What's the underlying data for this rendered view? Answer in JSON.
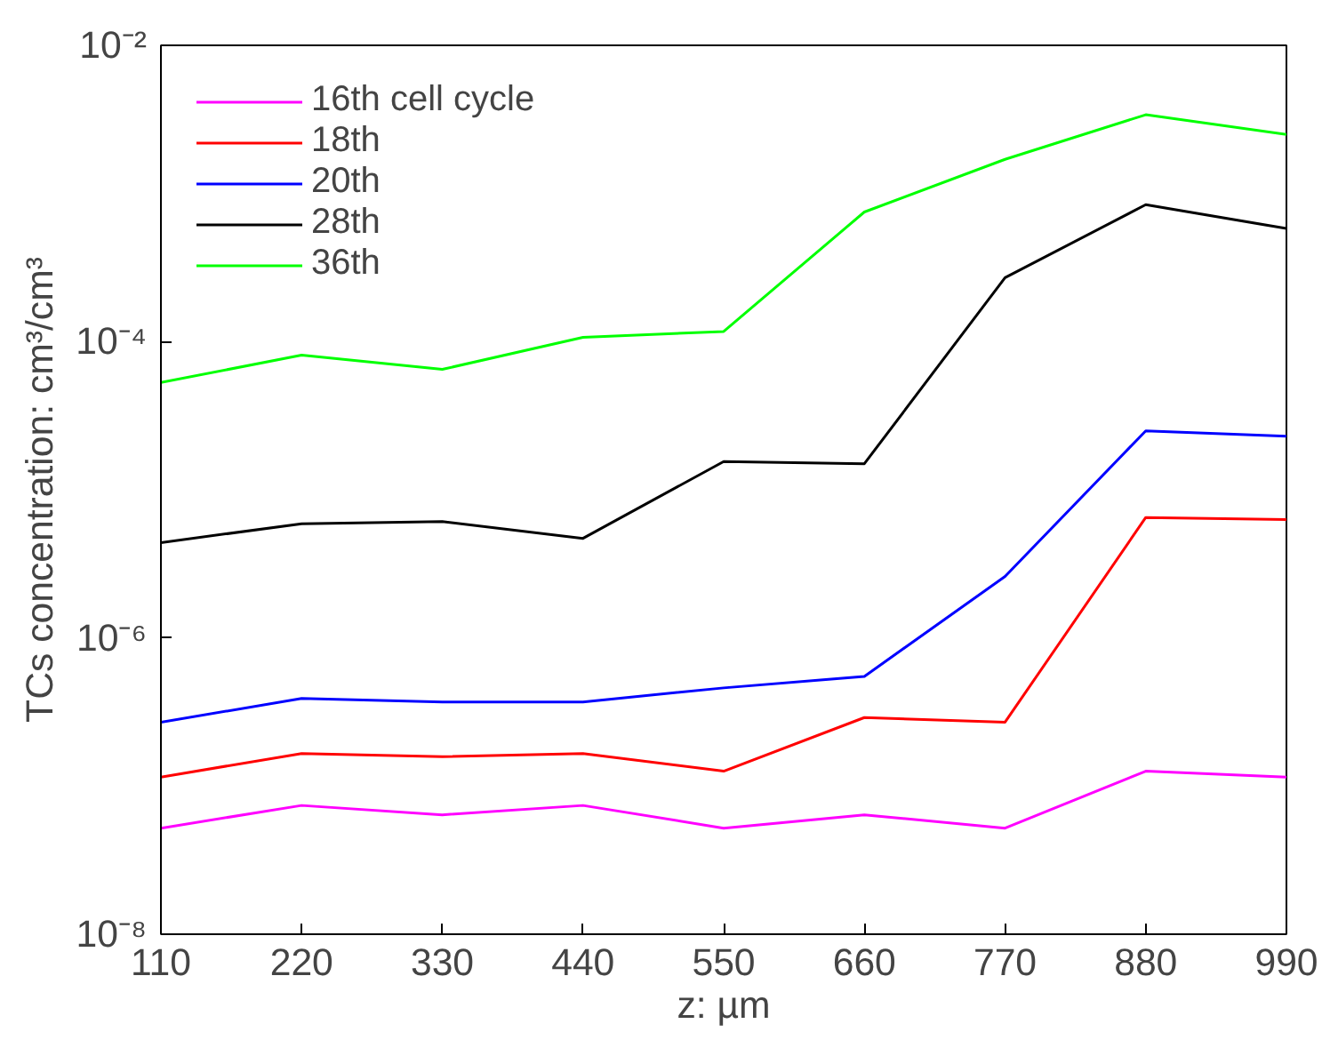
{
  "chart_data": {
    "type": "line",
    "xlabel": "z: µm",
    "ylabel": "TCs concentration: cm³/cm³",
    "x": [
      110,
      220,
      330,
      440,
      550,
      660,
      770,
      880,
      990
    ],
    "xlim": [
      110,
      990
    ],
    "xticks": [
      110,
      220,
      330,
      440,
      550,
      660,
      770,
      880,
      990
    ],
    "ylim": [
      1e-08,
      0.01
    ],
    "yticks": [
      {
        "value": 1e-08,
        "label": "10⁻⁸"
      },
      {
        "value": 1e-06,
        "label": "10⁻⁶"
      },
      {
        "value": 0.0001,
        "label": "10⁻⁴"
      },
      {
        "value": 0.01,
        "label": "10⁻²"
      }
    ],
    "log": "y",
    "grid": false,
    "legend": "top left",
    "marker": "none",
    "line_style": "solid",
    "series": [
      {
        "name": "16th cell cycle",
        "color": "#ff00ff",
        "values": [
          5.2e-08,
          7.4e-08,
          6.4e-08,
          7.4e-08,
          5.2e-08,
          6.4e-08,
          5.2e-08,
          1.26e-07,
          1.15e-07
        ]
      },
      {
        "name": "18th",
        "color": "#ff0000",
        "values": [
          1.15e-07,
          1.66e-07,
          1.58e-07,
          1.66e-07,
          1.26e-07,
          2.9e-07,
          2.7e-07,
          6.5e-06,
          6.3e-06
        ]
      },
      {
        "name": "20th",
        "color": "#0000ff",
        "values": [
          2.7e-07,
          3.9e-07,
          3.7e-07,
          3.7e-07,
          4.6e-07,
          5.5e-07,
          2.6e-06,
          2.5e-05,
          2.3e-05
        ]
      },
      {
        "name": "28th",
        "color": "#000000",
        "values": [
          4.4e-06,
          5.9e-06,
          6.1e-06,
          4.7e-06,
          1.55e-05,
          1.5e-05,
          0.00027,
          0.00084,
          0.00058
        ]
      },
      {
        "name": "36th",
        "color": "#00ff00",
        "values": [
          5.3e-05,
          8.1e-05,
          6.5e-05,
          0.000107,
          0.000117,
          0.00075,
          0.0017,
          0.0034,
          0.0025
        ]
      }
    ]
  }
}
